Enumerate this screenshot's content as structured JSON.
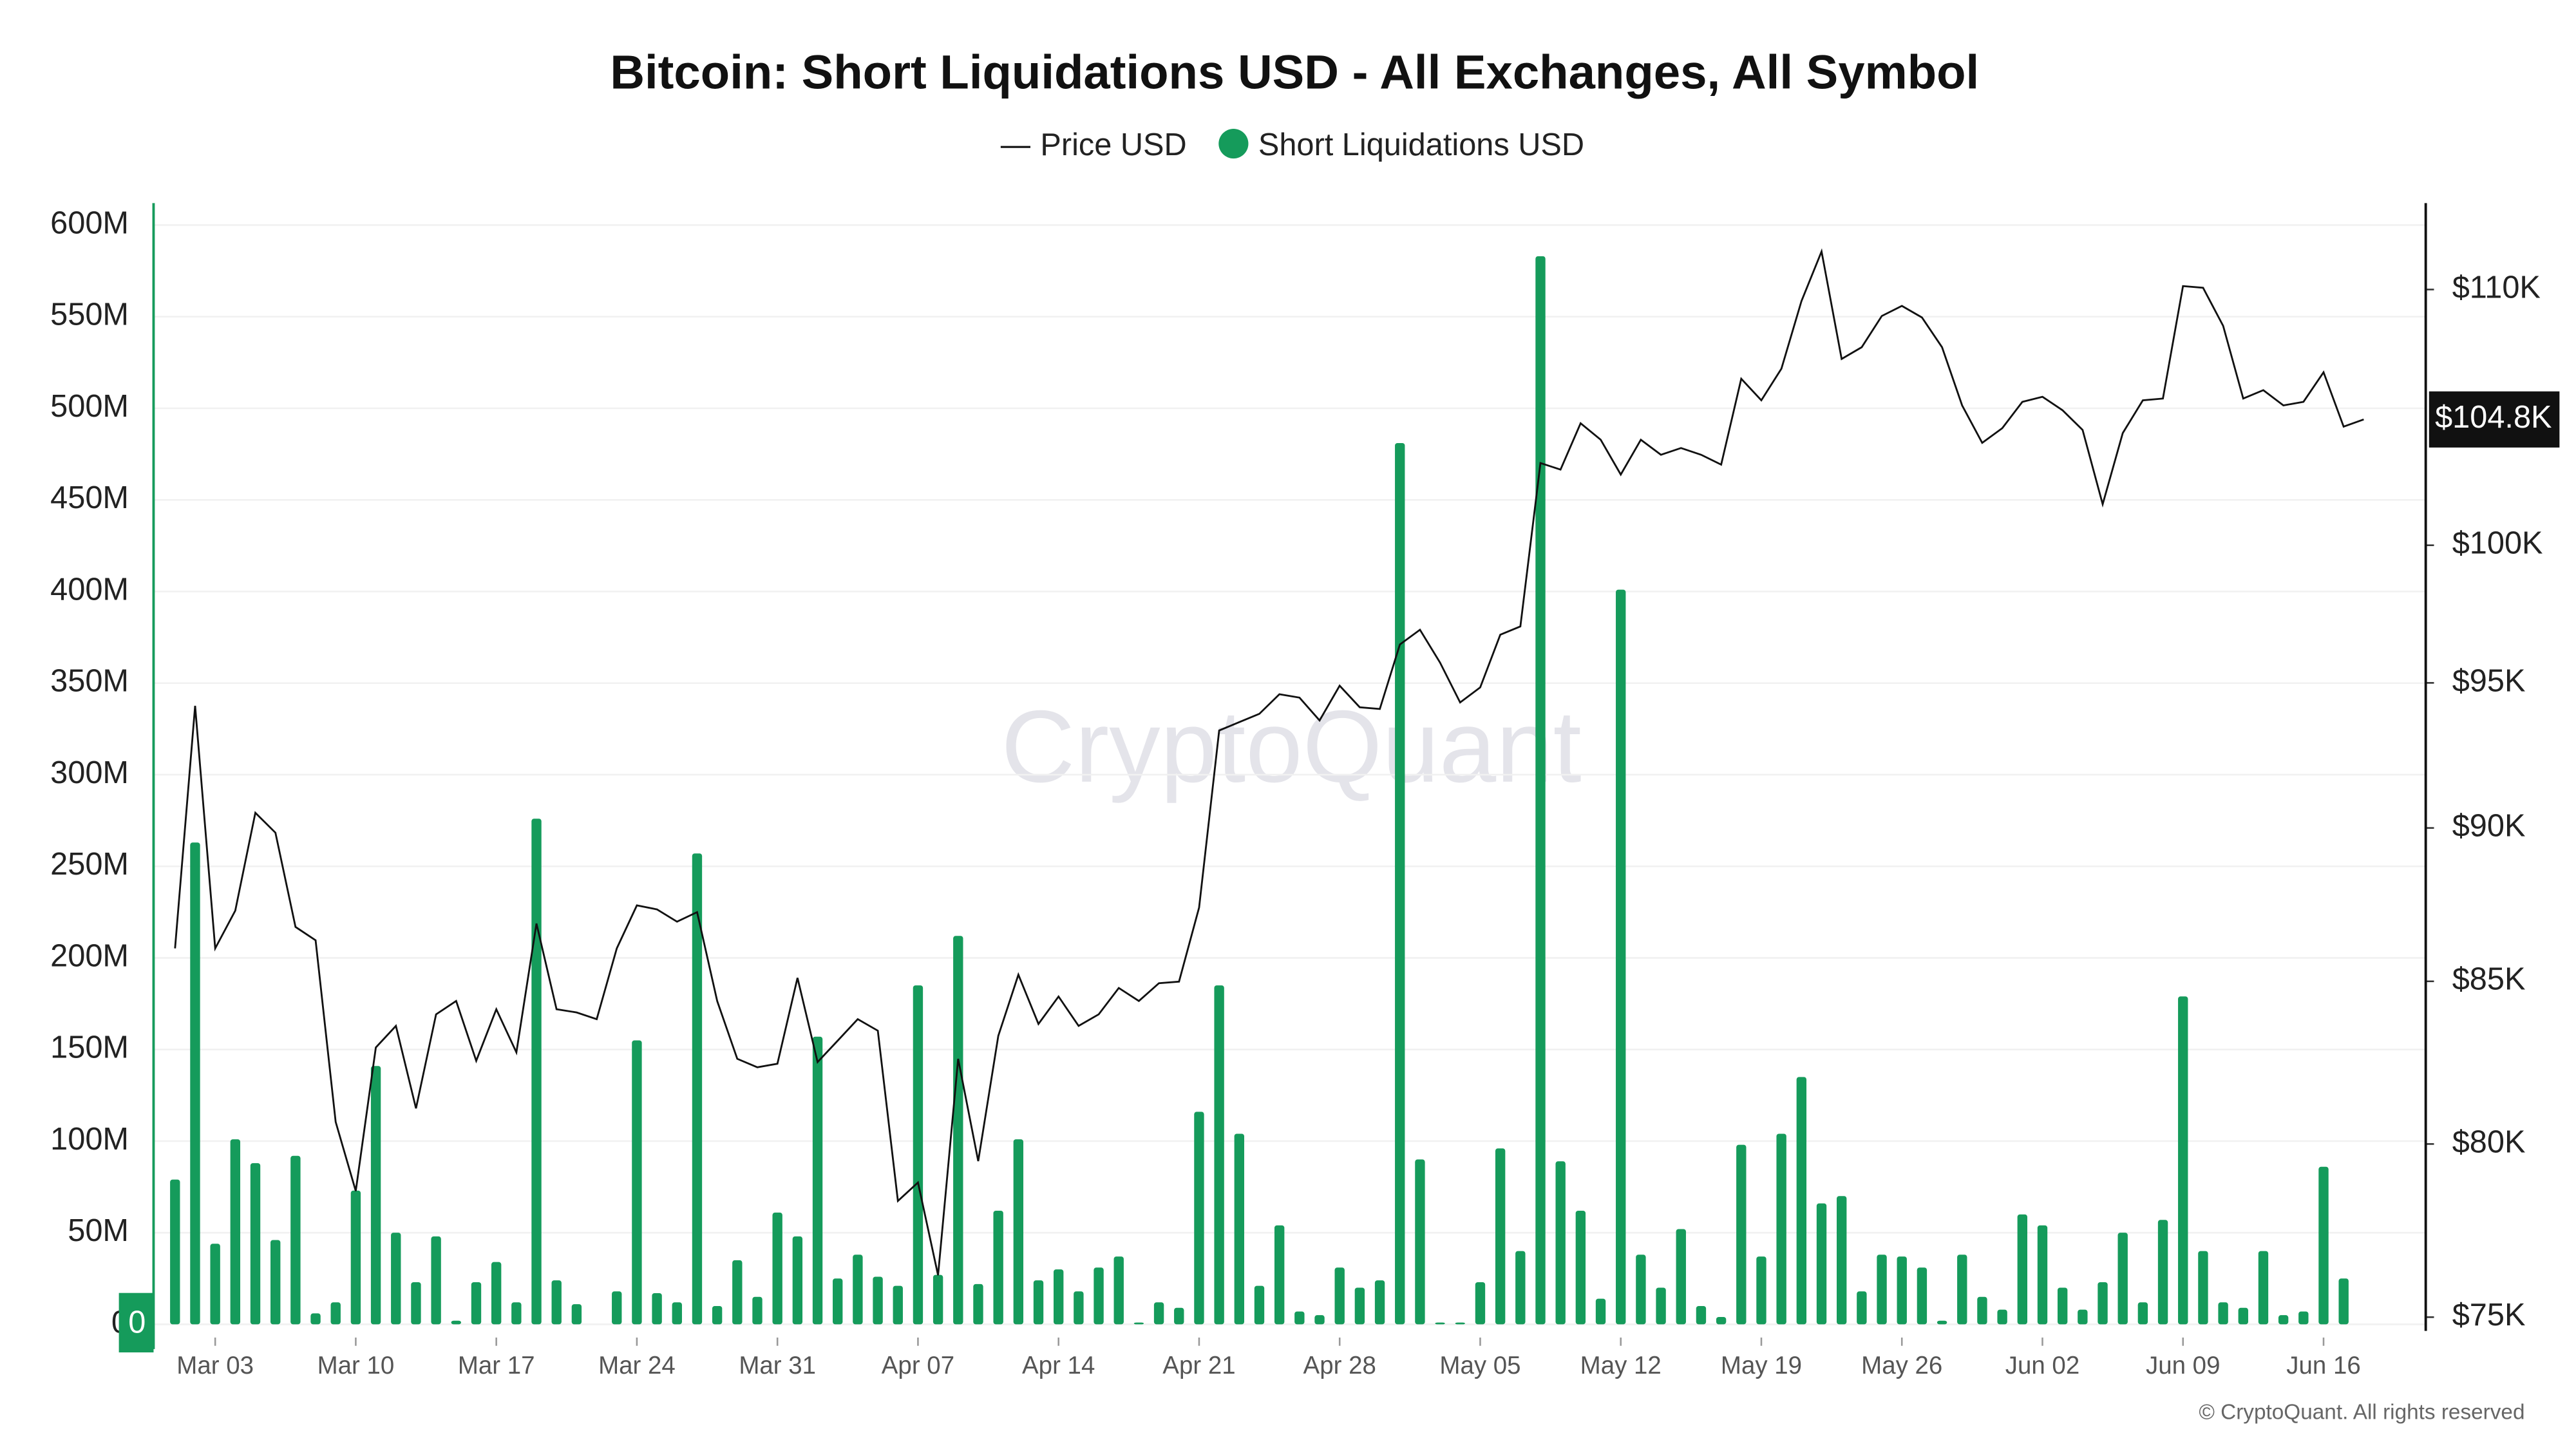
{
  "chart_data": {
    "type": "bar",
    "title": "Bitcoin: Short Liquidations USD - All Exchanges, All Symbol",
    "watermark": "CryptoQuant",
    "copyright": "© CryptoQuant. All rights reserved",
    "categories": [
      null,
      null,
      "Mar 03",
      null,
      null,
      null,
      null,
      null,
      null,
      "Mar 10",
      null,
      null,
      null,
      null,
      null,
      null,
      "Mar 17",
      null,
      null,
      null,
      null,
      null,
      null,
      "Mar 24",
      null,
      null,
      null,
      null,
      null,
      null,
      "Mar 31",
      null,
      null,
      null,
      null,
      null,
      null,
      "Apr 07",
      null,
      null,
      null,
      null,
      null,
      null,
      "Apr 14",
      null,
      null,
      null,
      null,
      null,
      null,
      "Apr 21",
      null,
      null,
      null,
      null,
      null,
      null,
      "Apr 28",
      null,
      null,
      null,
      null,
      null,
      null,
      "May 05",
      null,
      null,
      null,
      null,
      null,
      null,
      "May 12",
      null,
      null,
      null,
      null,
      null,
      null,
      "May 19",
      null,
      null,
      null,
      null,
      null,
      null,
      "May 26",
      null,
      null,
      null,
      null,
      null,
      null,
      "Jun 02",
      null,
      null,
      null,
      null,
      null,
      null,
      "Jun 09",
      null,
      null,
      null,
      null,
      null,
      null,
      "Jun 16",
      null,
      null
    ],
    "series": [
      {
        "name": "Price USD",
        "type": "line",
        "axis": "y2",
        "color": "#111111",
        "last_label": "$104.8K",
        "values": [
          86050,
          94190,
          86050,
          87270,
          90510,
          89840,
          86740,
          86310,
          80660,
          78610,
          82930,
          83600,
          81070,
          83960,
          84380,
          82520,
          84120,
          82780,
          86850,
          84120,
          84020,
          83810,
          86050,
          87440,
          87310,
          86910,
          87220,
          84380,
          82580,
          82320,
          82430,
          85110,
          82480,
          83140,
          83810,
          83450,
          78320,
          78860,
          76180,
          82580,
          79490,
          83290,
          85210,
          83660,
          84520,
          83600,
          83960,
          84790,
          84380,
          84940,
          84990,
          87370,
          93330,
          93620,
          93910,
          94600,
          94480,
          93680,
          94900,
          94140,
          94080,
          96370,
          96900,
          95720,
          94310,
          94840,
          96720,
          97020,
          103110,
          102860,
          104650,
          104010,
          102670,
          104010,
          103430,
          103690,
          103430,
          103050,
          106400,
          105550,
          106800,
          109530,
          111570,
          107190,
          107660,
          108920,
          109330,
          108860,
          107660,
          105350,
          103890,
          104460,
          105490,
          105690,
          105160,
          104390,
          101540,
          104270,
          105550,
          105620,
          110140,
          110070,
          108520,
          105620,
          105950,
          105350,
          105490,
          106660,
          104520,
          104800
        ]
      },
      {
        "name": "Short Liquidations USD",
        "type": "bar",
        "color": "#159b5b",
        "last_label": "0",
        "values": [
          79000000,
          263000000,
          44000000,
          101000000,
          88000000,
          46000000,
          92000000,
          6000000,
          12000000,
          73000000,
          141000000,
          50000000,
          23000000,
          48000000,
          2000000,
          23000000,
          34000000,
          12000000,
          276000000,
          24000000,
          11000000,
          0,
          18000000,
          155000000,
          17000000,
          12000000,
          257000000,
          10000000,
          35000000,
          15000000,
          61000000,
          48000000,
          157000000,
          25000000,
          38000000,
          26000000,
          21000000,
          185000000,
          27000000,
          212000000,
          22000000,
          62000000,
          101000000,
          24000000,
          30000000,
          18000000,
          31000000,
          37000000,
          1000000,
          12000000,
          9000000,
          116000000,
          185000000,
          104000000,
          21000000,
          54000000,
          7000000,
          5000000,
          31000000,
          20000000,
          24000000,
          481000000,
          90000000,
          1000000,
          1000000,
          23000000,
          96000000,
          40000000,
          583000000,
          89000000,
          62000000,
          14000000,
          401000000,
          38000000,
          20000000,
          52000000,
          10000000,
          4000000,
          98000000,
          37000000,
          104000000,
          135000000,
          66000000,
          70000000,
          18000000,
          38000000,
          37000000,
          31000000,
          2000000,
          38000000,
          15000000,
          8000000,
          60000000,
          54000000,
          20000000,
          8000000,
          23000000,
          50000000,
          12000000,
          57000000,
          179000000,
          40000000,
          12000000,
          9000000,
          40000000,
          5000000,
          7000000,
          86000000,
          25000000,
          0
        ]
      }
    ],
    "ylim": [
      0,
      612000000
    ],
    "yticks": [
      0,
      {
        "value": 50000000,
        "label": "50M"
      },
      {
        "value": 100000000,
        "label": "100M"
      },
      {
        "value": 150000000,
        "label": "150M"
      },
      {
        "value": 200000000,
        "label": "200M"
      },
      {
        "value": 250000000,
        "label": "250M"
      },
      {
        "value": 300000000,
        "label": "300M"
      },
      {
        "value": 350000000,
        "label": "350M"
      },
      {
        "value": 400000000,
        "label": "400M"
      },
      {
        "value": 450000000,
        "label": "450M"
      },
      {
        "value": 500000000,
        "label": "500M"
      },
      {
        "value": 550000000,
        "label": "550M"
      },
      {
        "value": 600000000,
        "label": "600M"
      }
    ],
    "y2lim": [
      74800,
      113600
    ],
    "y2log": true,
    "y2ticks": [
      {
        "value": 75000,
        "label": "$75K"
      },
      {
        "value": 80000,
        "label": "$80K"
      },
      {
        "value": 85000,
        "label": "$85K"
      },
      {
        "value": 90000,
        "label": "$90K"
      },
      {
        "value": 95000,
        "label": "$95K"
      },
      {
        "value": 100000,
        "label": "$100K"
      },
      {
        "value": 110000,
        "label": "$110K"
      }
    ],
    "grid": true
  }
}
